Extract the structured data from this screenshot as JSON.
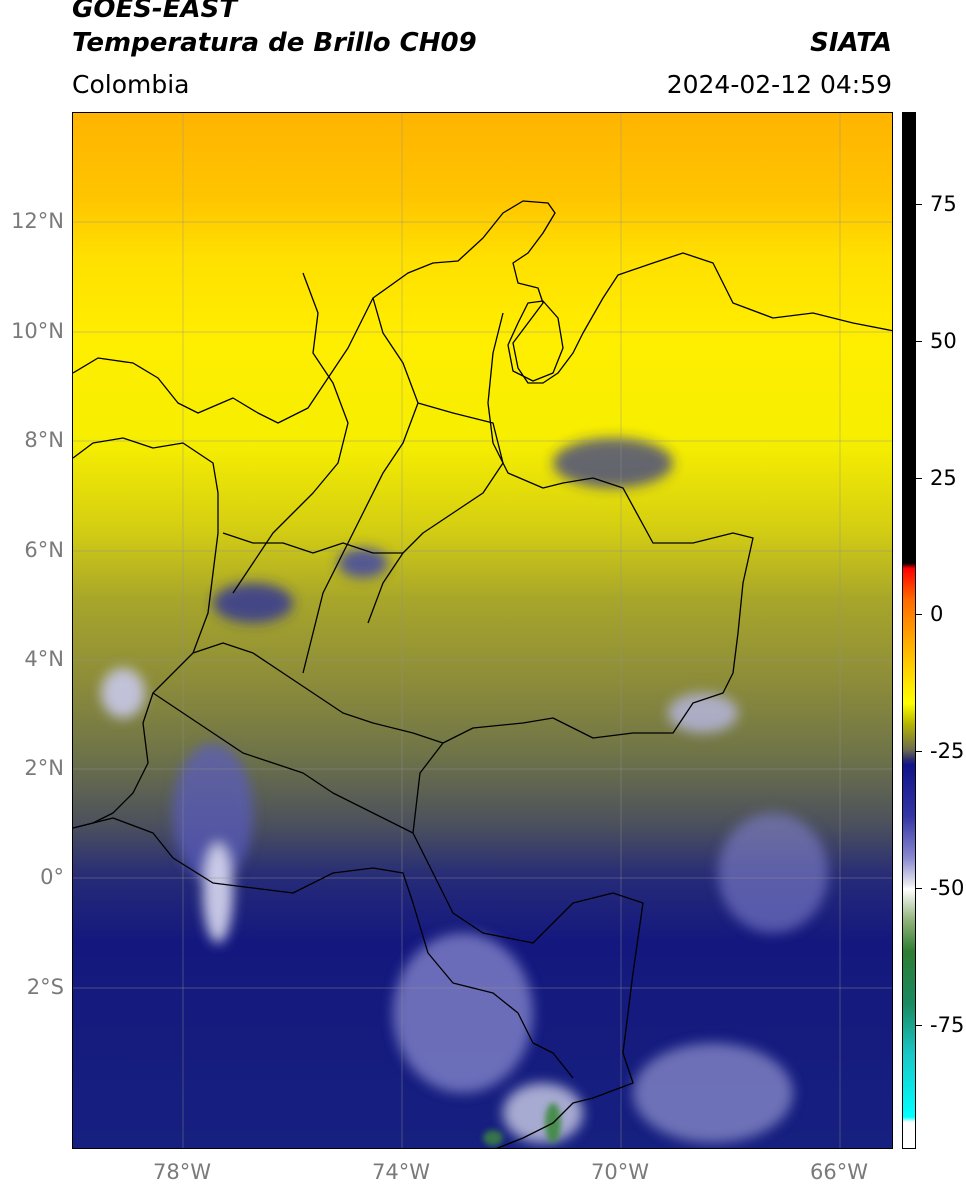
{
  "header": {
    "line1": "GOES-EAST",
    "line2": "Temperatura de Brillo CH09",
    "org": "SIATA",
    "region": "Colombia",
    "datetime": "2024-02-12 04:59"
  },
  "map": {
    "lat_labels": [
      "12°N",
      "10°N",
      "8°N",
      "6°N",
      "4°N",
      "2°N",
      "0°",
      "2°S"
    ],
    "lon_labels": [
      "78°W",
      "74°W",
      "70°W",
      "66°W"
    ]
  },
  "colorbar": {
    "labels": [
      "75",
      "50",
      "25",
      "0",
      "-25",
      "-50",
      "-75"
    ],
    "colors": {
      "warm_top": "#000000",
      "red": "#ff0000",
      "yellow": "#ffff00",
      "navy": "#10148a",
      "white": "#ffffff",
      "green": "#2e7d32",
      "cyan": "#00ffff"
    }
  }
}
